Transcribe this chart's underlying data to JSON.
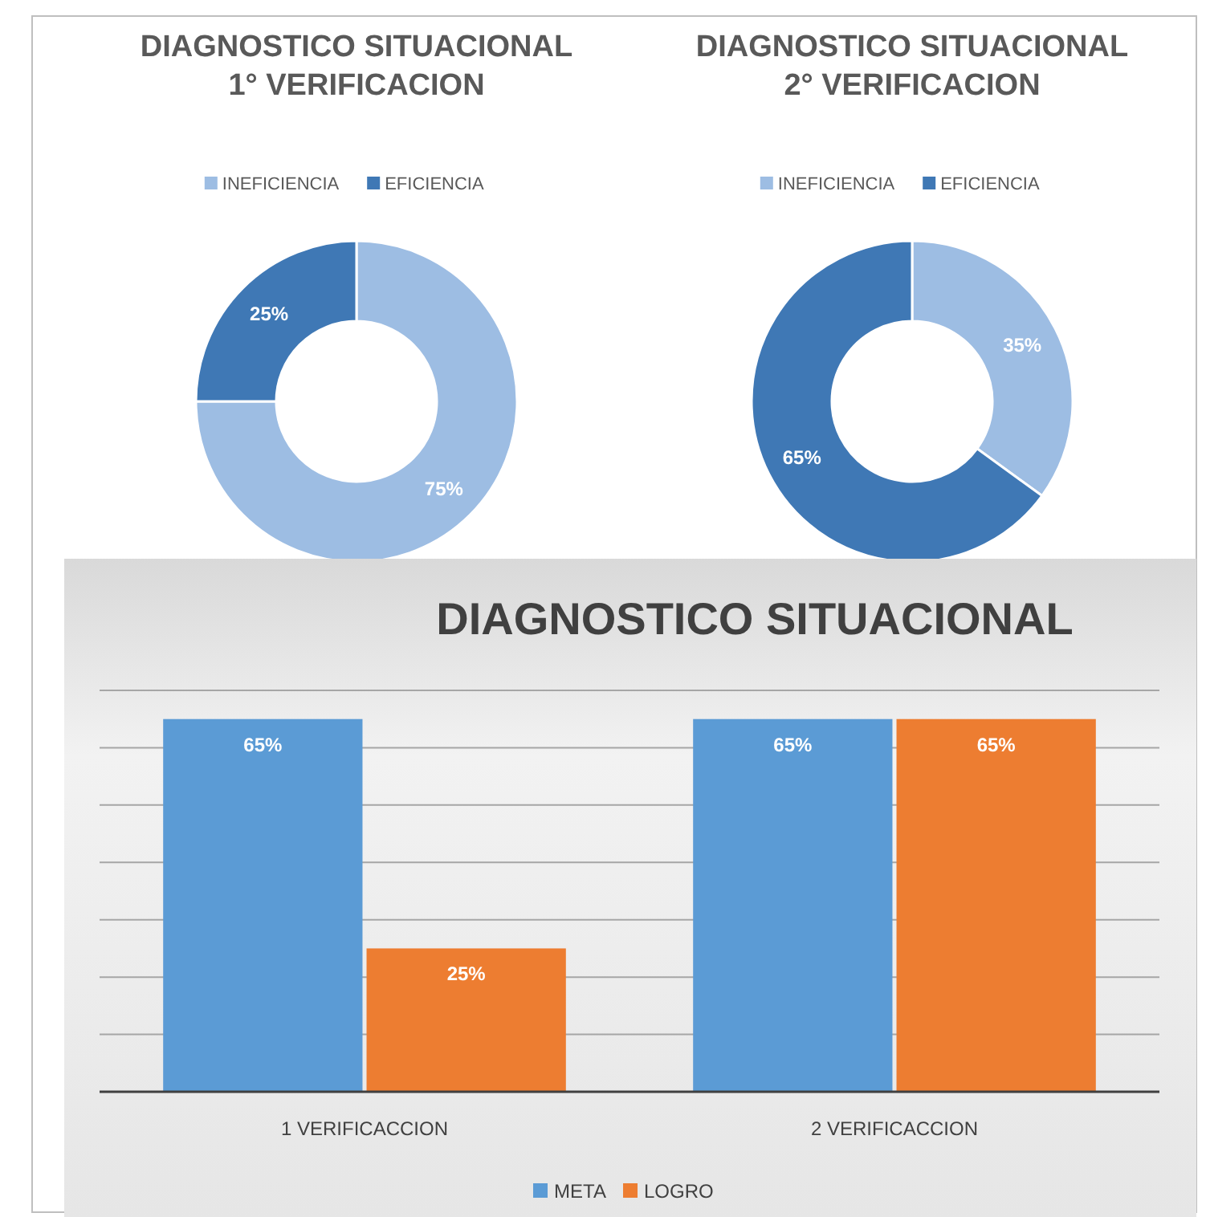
{
  "chart_data": [
    {
      "type": "donut",
      "title": "DIAGNOSTICO SITUACIONAL\n1° VERIFICACION",
      "categories": [
        "INEFICIENCIA",
        "EFICIENCIA"
      ],
      "values": [
        75,
        25
      ],
      "colors": [
        "#9dbde3",
        "#3f78b5"
      ],
      "value_labels": [
        "75%",
        "25%"
      ],
      "legend": "top"
    },
    {
      "type": "donut",
      "title": "DIAGNOSTICO SITUACIONAL\n2° VERIFICACION",
      "categories": [
        "INEFICIENCIA",
        "EFICIENCIA"
      ],
      "values": [
        35,
        65
      ],
      "colors": [
        "#9dbde3",
        "#3f78b5"
      ],
      "value_labels": [
        "35%",
        "65%"
      ],
      "legend": "top"
    },
    {
      "type": "bar",
      "title": "DIAGNOSTICO SITUACIONAL",
      "categories": [
        "1 VERIFICACCION",
        "2 VERIFICACCION"
      ],
      "series": [
        {
          "name": "META",
          "color": "#5b9bd5",
          "values": [
            65,
            65
          ],
          "value_labels": [
            "65%",
            "65%"
          ]
        },
        {
          "name": "LOGRO",
          "color": "#ed7d31",
          "values": [
            25,
            65
          ],
          "value_labels": [
            "25%",
            "65%"
          ]
        }
      ],
      "ylim": [
        0,
        70
      ],
      "yticks": [
        {
          "value": 0,
          "label": null
        },
        {
          "value": 10,
          "label": null
        },
        {
          "value": 20,
          "label": null
        },
        {
          "value": 30,
          "label": null
        },
        {
          "value": 40,
          "label": null
        },
        {
          "value": 50,
          "label": null
        },
        {
          "value": 60,
          "label": null
        },
        {
          "value": 70,
          "label": null
        }
      ],
      "grid": "y",
      "tick_labels": "x",
      "legend": "bottom"
    }
  ]
}
